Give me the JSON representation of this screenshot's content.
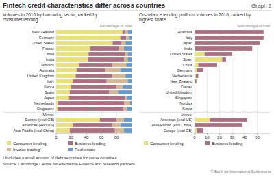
{
  "title": "Fintech credit characteristics differ across countries",
  "annotations": [
    "Graph 2",
    "¹ Includes a small amount of debt securities for some countries.",
    "Source: Cambridge Centre for Alternative Finance and research partners.",
    "© Bank for International Settlements"
  ],
  "chart_data": [
    {
      "type": "bar",
      "orientation": "horizontal",
      "stacked": true,
      "grid": true,
      "legend": "bottom",
      "subtitle": [
        "Volumes in 2016 by borrowing sector, ranked by",
        "consumer lending"
      ],
      "annotations": [
        "Memo:",
        "Percentage of total"
      ],
      "categories": [
        "New Zealand",
        "Germany",
        "United States",
        "France",
        "China",
        "India",
        "Nordics",
        "Australia",
        "United Kingdom",
        "Italy",
        "Korea",
        "Spain",
        "Japan",
        "Netherlands",
        "Singapore",
        "Europe (excl GB)",
        "Americas (excl US)",
        "Asia-Pacific (excl China)"
      ],
      "series": [
        {
          "name": "Consumer lending",
          "color": "#e8e07a",
          "values": [
            88,
            85,
            75,
            45,
            43,
            42,
            30,
            27,
            26,
            22,
            20,
            18,
            17,
            2,
            2,
            58,
            22,
            18
          ]
        },
        {
          "name": "Business lending",
          "color": "#a87080",
          "values": [
            4,
            8,
            12,
            38,
            48,
            48,
            45,
            38,
            48,
            45,
            60,
            52,
            75,
            88,
            87,
            22,
            52,
            60
          ]
        },
        {
          "name": "Invoice trading¹",
          "color": "#d4b896",
          "values": [
            3,
            4,
            5,
            7,
            4,
            5,
            18,
            20,
            18,
            28,
            8,
            12,
            2,
            8,
            5,
            10,
            12,
            12
          ]
        },
        {
          "name": "Real estate",
          "color": "#6699cc",
          "values": [
            5,
            3,
            8,
            10,
            5,
            5,
            7,
            15,
            8,
            5,
            12,
            18,
            6,
            2,
            6,
            10,
            14,
            10
          ]
        }
      ],
      "xlim": [
        0,
        100
      ],
      "xticks": [
        0,
        20,
        40,
        60,
        80
      ]
    },
    {
      "type": "bar",
      "orientation": "horizontal",
      "stacked": true,
      "grid": true,
      "legend": "bottom",
      "subtitle": [
        "On-balance lending platform volumes in 2016, ranked by",
        "highest share"
      ],
      "annotations": [
        "Memo:",
        "Percentage of total"
      ],
      "categories": [
        "Australia",
        "Italy",
        "Japan",
        "India",
        "United States",
        "Spain",
        "China",
        "Germany",
        "Netherlands",
        "New Zealand",
        "France",
        "United Kingdom",
        "Singapore",
        "Nordics",
        "Korea",
        "Americas (excl US)",
        "Asia-Pacific (excl China)",
        "Europe (excl GB)"
      ],
      "series": [
        {
          "name": "Consumer lending",
          "color": "#e8e07a",
          "values": [
            0,
            0,
            0,
            0,
            8,
            22,
            3,
            2,
            1,
            0.5,
            0,
            0,
            0,
            0,
            0,
            12,
            0,
            2
          ]
        },
        {
          "name": "Business lending",
          "color": "#a87080",
          "values": [
            55,
            55,
            52,
            46,
            22,
            3,
            15,
            5,
            2,
            1,
            0.5,
            0.5,
            0.3,
            0.3,
            0.2,
            30,
            38,
            5
          ]
        }
      ],
      "xlim": [
        0,
        60
      ],
      "xticks": [
        0,
        10,
        20,
        30,
        40,
        50
      ]
    }
  ]
}
